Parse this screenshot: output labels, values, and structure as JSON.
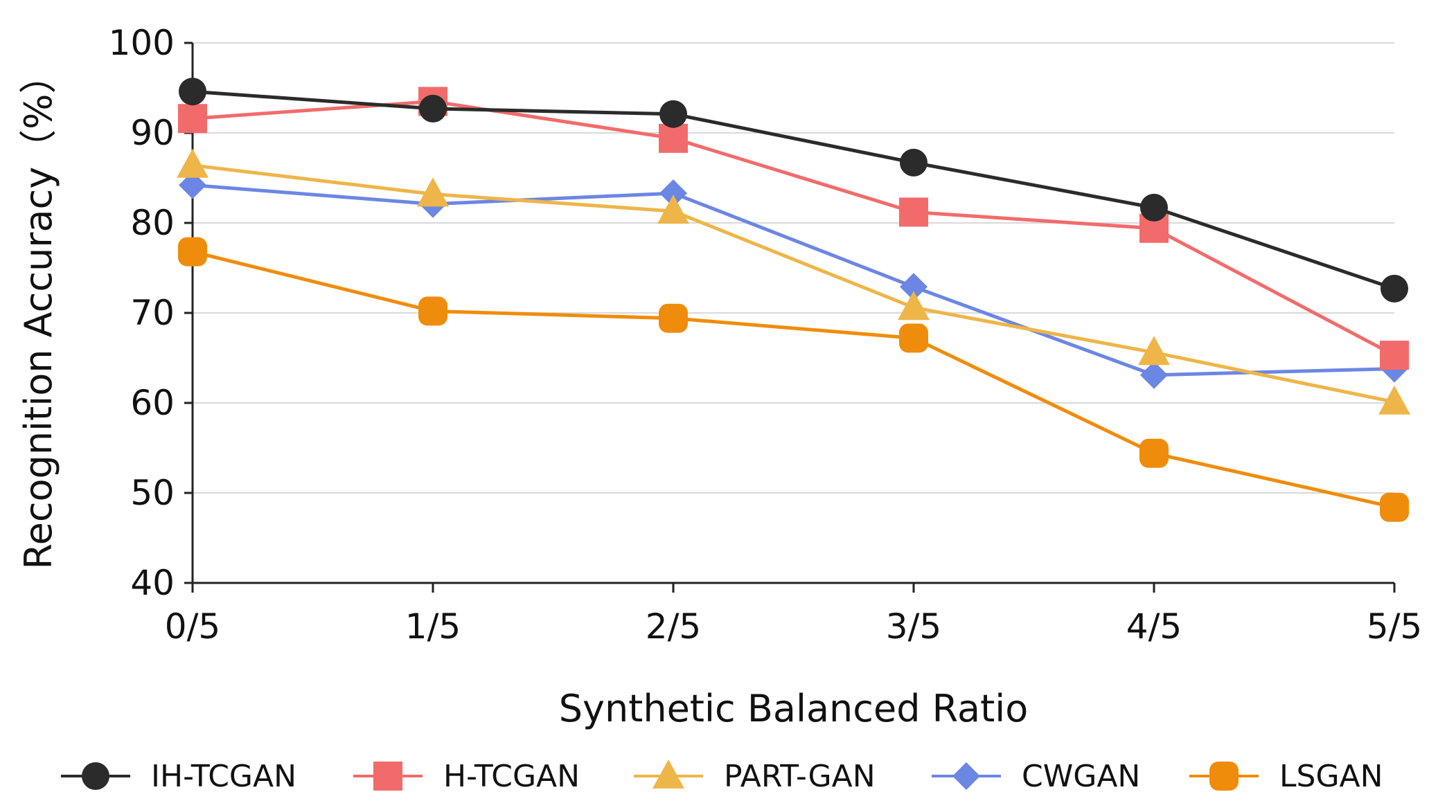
{
  "chart_data": {
    "type": "line",
    "title": "",
    "xlabel": "Synthetic Balanced Ratio",
    "ylabel": "Recognition Accuracy（%）",
    "categories": [
      "0/5",
      "1/5",
      "2/5",
      "3/5",
      "4/5",
      "5/5"
    ],
    "ylim": [
      40,
      100
    ],
    "yticks": [
      "40",
      "50",
      "60",
      "70",
      "80",
      "90",
      "100"
    ],
    "grid": true,
    "legend_position": "bottom",
    "series": [
      {
        "name": "IH-TCGAN",
        "marker": "circle",
        "color": "#2b2b2b",
        "values": [
          94.6,
          92.7,
          92.1,
          86.7,
          81.7,
          72.7
        ]
      },
      {
        "name": "H-TCGAN",
        "marker": "square",
        "color": "#f26b6b",
        "values": [
          91.6,
          93.5,
          89.4,
          81.2,
          79.4,
          65.3
        ]
      },
      {
        "name": "PART-GAN",
        "marker": "triangle",
        "color": "#eeb549",
        "values": [
          86.4,
          83.2,
          81.3,
          70.6,
          65.6,
          60.1
        ]
      },
      {
        "name": "CWGAN",
        "marker": "diamond",
        "color": "#6c86e3",
        "values": [
          84.2,
          82.1,
          83.3,
          72.9,
          63.1,
          63.8
        ]
      },
      {
        "name": "LSGAN",
        "marker": "rounded-square",
        "color": "#f08c0b",
        "values": [
          76.8,
          70.2,
          69.4,
          67.2,
          54.4,
          48.4
        ]
      }
    ]
  }
}
